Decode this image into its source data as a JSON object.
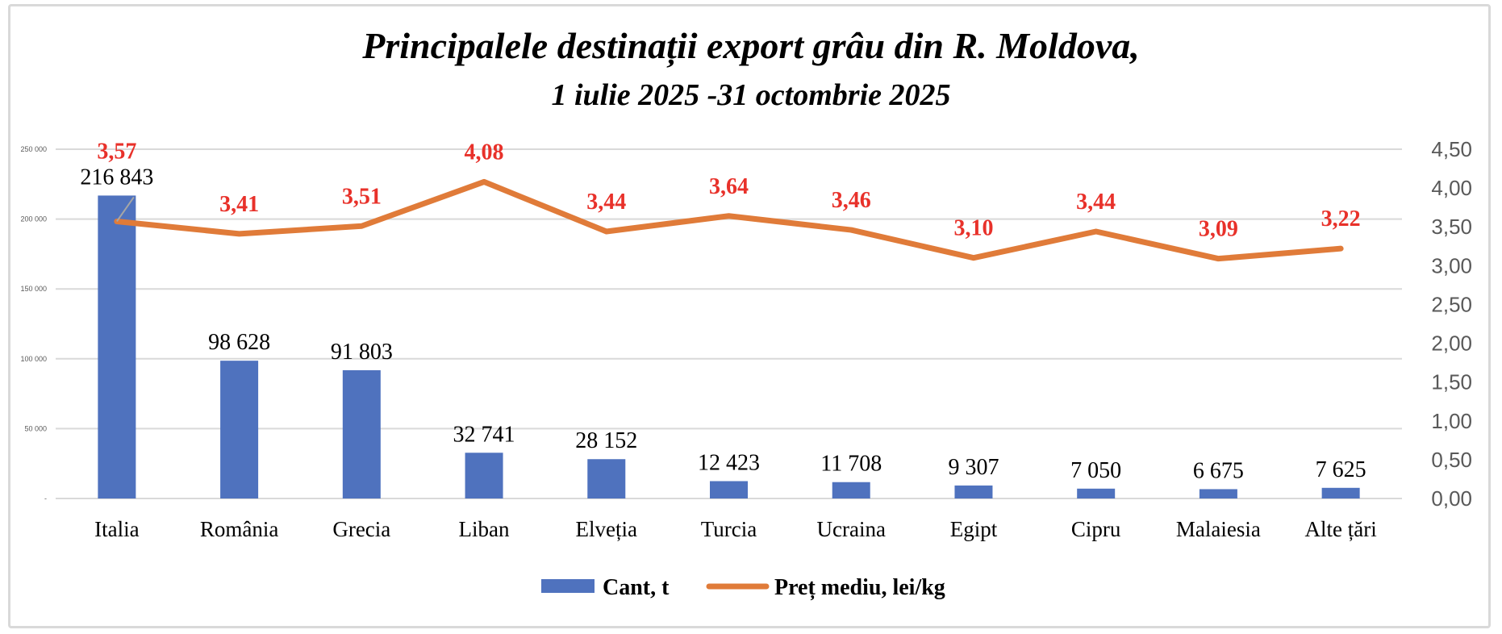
{
  "chart_data": {
    "type": "bar+line",
    "title": "Principalele destinații export grâu din R. Moldova,",
    "subtitle": "1 iulie 2025 -31 octombrie 2025",
    "categories": [
      "Italia",
      "România",
      "Grecia",
      "Liban",
      "Elveția",
      "Turcia",
      "Ucraina",
      "Egipt",
      "Cipru",
      "Malaiesia",
      "Alte țări"
    ],
    "series": [
      {
        "name": "Cant, t",
        "type": "bar",
        "axis": "left",
        "color": "#4f72be",
        "values": [
          216843,
          98628,
          91803,
          32741,
          28152,
          12423,
          11708,
          9307,
          7050,
          6675,
          7625
        ],
        "labels": [
          "216 843",
          "98 628",
          "91 803",
          "32 741",
          "28 152",
          "12 423",
          "11 708",
          "9 307",
          "7 050",
          "6 675",
          "7 625"
        ]
      },
      {
        "name": "Preț mediu, lei/kg",
        "type": "line",
        "axis": "right",
        "color": "#e07b39",
        "values": [
          3.57,
          3.41,
          3.51,
          4.08,
          3.44,
          3.64,
          3.46,
          3.1,
          3.44,
          3.09,
          3.22
        ],
        "labels": [
          "3,57",
          "3,41",
          "3,51",
          "4,08",
          "3,44",
          "3,64",
          "3,46",
          "3,10",
          "3,44",
          "3,09",
          "3,22"
        ]
      }
    ],
    "left_axis": {
      "ylim": [
        0,
        250000
      ],
      "ticks": [
        "-",
        "50 000",
        "100 000",
        "150 000",
        "200 000",
        "250 000"
      ]
    },
    "right_axis": {
      "ylim": [
        0,
        4.5
      ],
      "ticks": [
        "0,00",
        "0,50",
        "1,00",
        "1,50",
        "2,00",
        "2,50",
        "3,00",
        "3,50",
        "4,00",
        "4,50"
      ]
    },
    "grid": true,
    "legend_position": "bottom",
    "label_color": "#e8312a"
  }
}
